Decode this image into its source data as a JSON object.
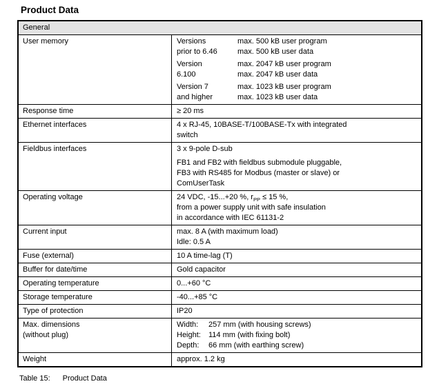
{
  "page": {
    "title": "Product Data",
    "caption": {
      "label": "Table 15:",
      "text": "Product Data"
    }
  },
  "colors": {
    "page_bg": "#ffffff",
    "text": "#000000",
    "border": "#000000",
    "header_bg": "#e3e3e3"
  },
  "table": {
    "header": "General",
    "rows": [
      {
        "label": "User memory",
        "groups": [
          {
            "version_line1": "Versions",
            "version_line2": "prior to 6.46",
            "value_line1": "max. 500 kB user program",
            "value_line2": "max. 500 kB user data"
          },
          {
            "version_line1": "Version",
            "version_line2": "6.100",
            "value_line1": "max. 2047 kB user program",
            "value_line2": "max. 2047 kB user data"
          },
          {
            "version_line1": "Version 7",
            "version_line2": "and higher",
            "value_line1": "max. 1023 kB user program",
            "value_line2": "max. 1023 kB user data"
          }
        ]
      },
      {
        "label": "Response time",
        "value": "≥ 20 ms"
      },
      {
        "label": "Ethernet interfaces",
        "lines": [
          "4 x RJ-45, 10BASE-T/100BASE-Tx with integrated",
          "switch"
        ]
      },
      {
        "label": "Fieldbus interfaces",
        "lines": [
          "3 x 9-pole D-sub",
          "FB1 and FB2 with fieldbus submodule pluggable,",
          "FB3 with RS485 for Modbus (master or slave) or",
          "ComUserTask"
        ]
      },
      {
        "label": "Operating voltage",
        "value_parts": {
          "pre": "24 VDC, -15...+20 %, r",
          "sub": "PP",
          "post": " ≤ 15 %,"
        },
        "lines": [
          "from a power supply unit with safe insulation",
          "in accordance with IEC 61131-2"
        ]
      },
      {
        "label": "Current input",
        "lines": [
          "max. 8 A (with maximum load)",
          "Idle: 0.5 A"
        ]
      },
      {
        "label": "Fuse (external)",
        "value": "10 A time-lag (T)"
      },
      {
        "label": "Buffer for date/time",
        "value": "Gold capacitor"
      },
      {
        "label": "Operating temperature",
        "value": "0...+60 °C"
      },
      {
        "label": "Storage temperature",
        "value": "-40...+85 °C"
      },
      {
        "label": "Type of protection",
        "value": "IP20"
      },
      {
        "label": "Max. dimensions",
        "label_line2": "(without plug)",
        "dims": [
          {
            "name": "Width:",
            "value": "257 mm (with housing screws)"
          },
          {
            "name": "Height:",
            "value": "114 mm (with fixing bolt)"
          },
          {
            "name": "Depth:",
            "value": "66 mm (with earthing screw)"
          }
        ]
      },
      {
        "label": "Weight",
        "value": "approx. 1.2 kg"
      }
    ]
  }
}
